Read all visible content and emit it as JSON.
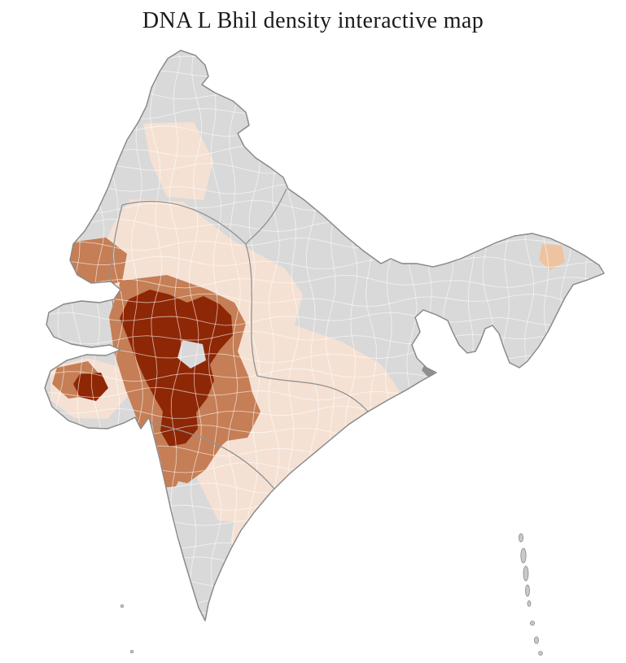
{
  "page": {
    "title": "DNA L Bhil density interactive map"
  },
  "map": {
    "region_label": "India district choropleth",
    "palette": {
      "sea": "#ffffff",
      "no_data": "#d9d9d9",
      "very_low": "#f5e1d3",
      "medium": "#c57e55",
      "very_high": "#8e2706",
      "ne_spot": "#eec3a0",
      "delta_gray": "#8f8f8f",
      "island": "#c9c9c9",
      "coast_line": "#8a8a8a",
      "state_line": "#929292",
      "district_line": "rgba(255,255,255,0.6)"
    },
    "regions": [
      {
        "id": "very-high-core",
        "density": "very high"
      },
      {
        "id": "medium-core-ring",
        "density": "medium"
      },
      {
        "id": "low-belt-main",
        "density": "low"
      },
      {
        "id": "no-data-rest",
        "density": "no data"
      }
    ]
  }
}
